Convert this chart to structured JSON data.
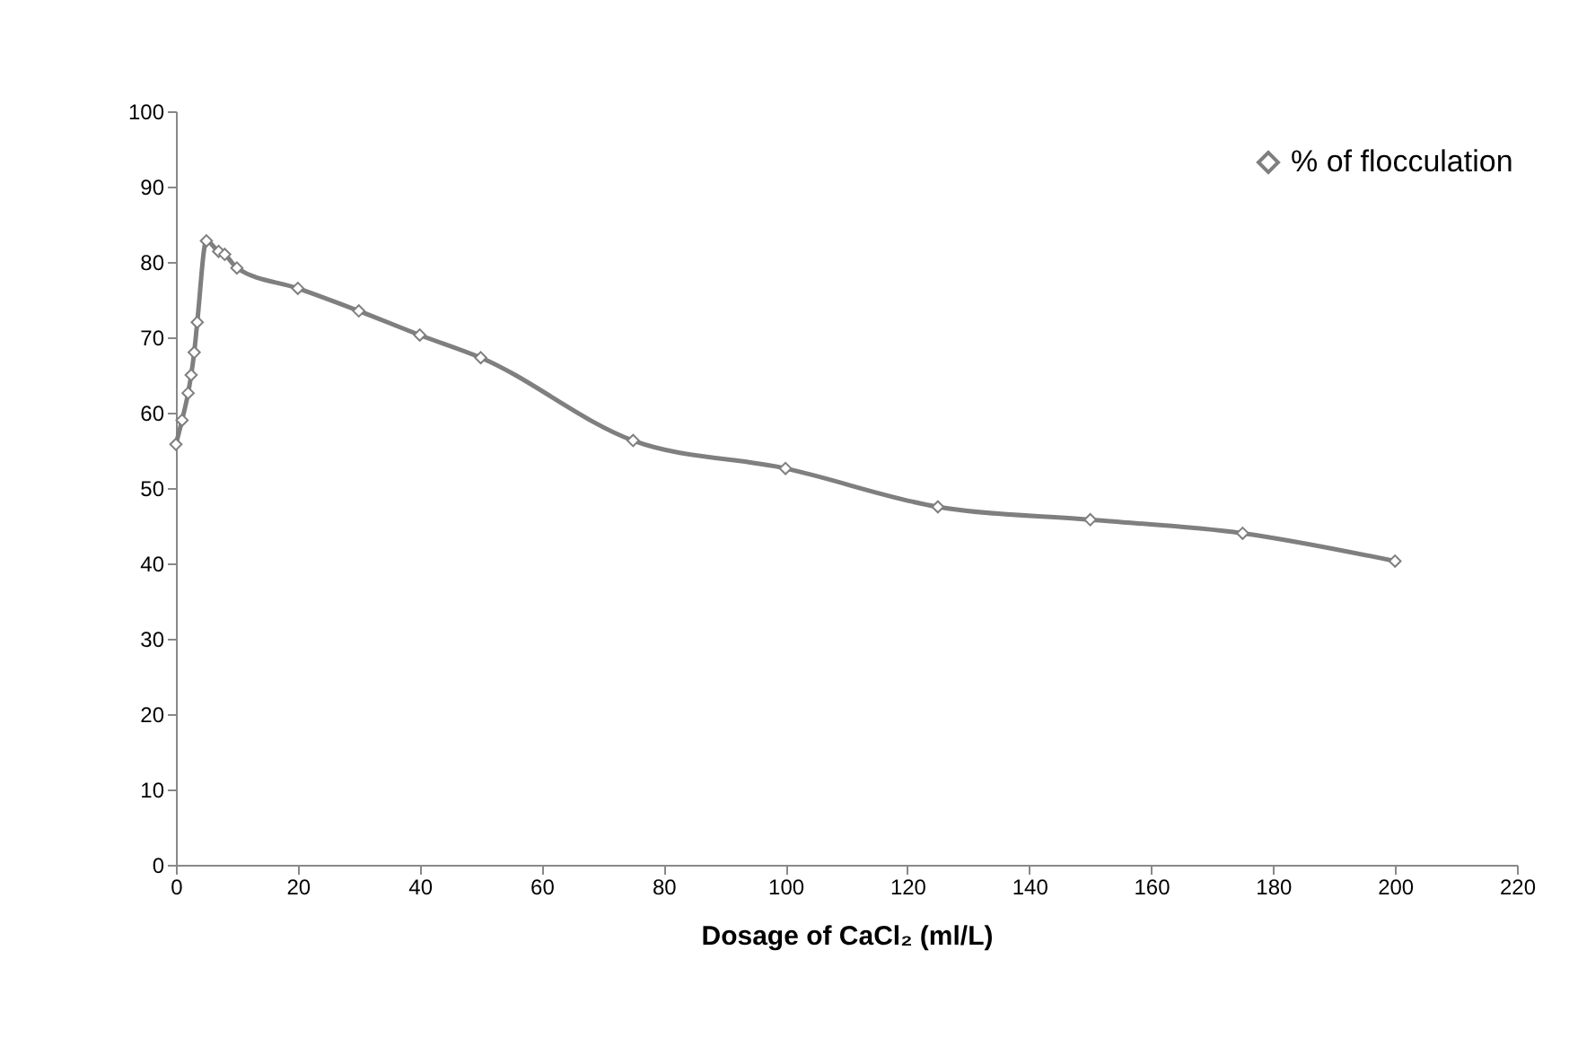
{
  "chart_data": {
    "type": "line",
    "xlabel": "Dosage of CaCl₂ (ml/L)",
    "x": [
      0,
      1,
      2,
      2.5,
      3,
      3.5,
      5,
      7,
      8,
      10,
      20,
      30,
      40,
      50,
      75,
      100,
      125,
      150,
      175,
      200
    ],
    "series": [
      {
        "name": "% of flocculation",
        "color": "#7f7f7f",
        "values": [
          55.8,
          59,
          62.6,
          65,
          68,
          72,
          82.8,
          81.4,
          81,
          79.2,
          76.5,
          73.5,
          70.3,
          67.3,
          56.3,
          52.6,
          47.5,
          45.8,
          44,
          40.3
        ]
      }
    ],
    "xlim": [
      0,
      220
    ],
    "xticks": [
      0,
      20,
      40,
      60,
      80,
      100,
      120,
      140,
      160,
      180,
      200,
      220
    ],
    "ylim": [
      0,
      100
    ],
    "yticks": [
      0,
      10,
      20,
      30,
      40,
      50,
      60,
      70,
      80,
      90,
      100
    ],
    "grid": false,
    "legend": "top right",
    "marker": "diamond",
    "line_style": "solid"
  }
}
